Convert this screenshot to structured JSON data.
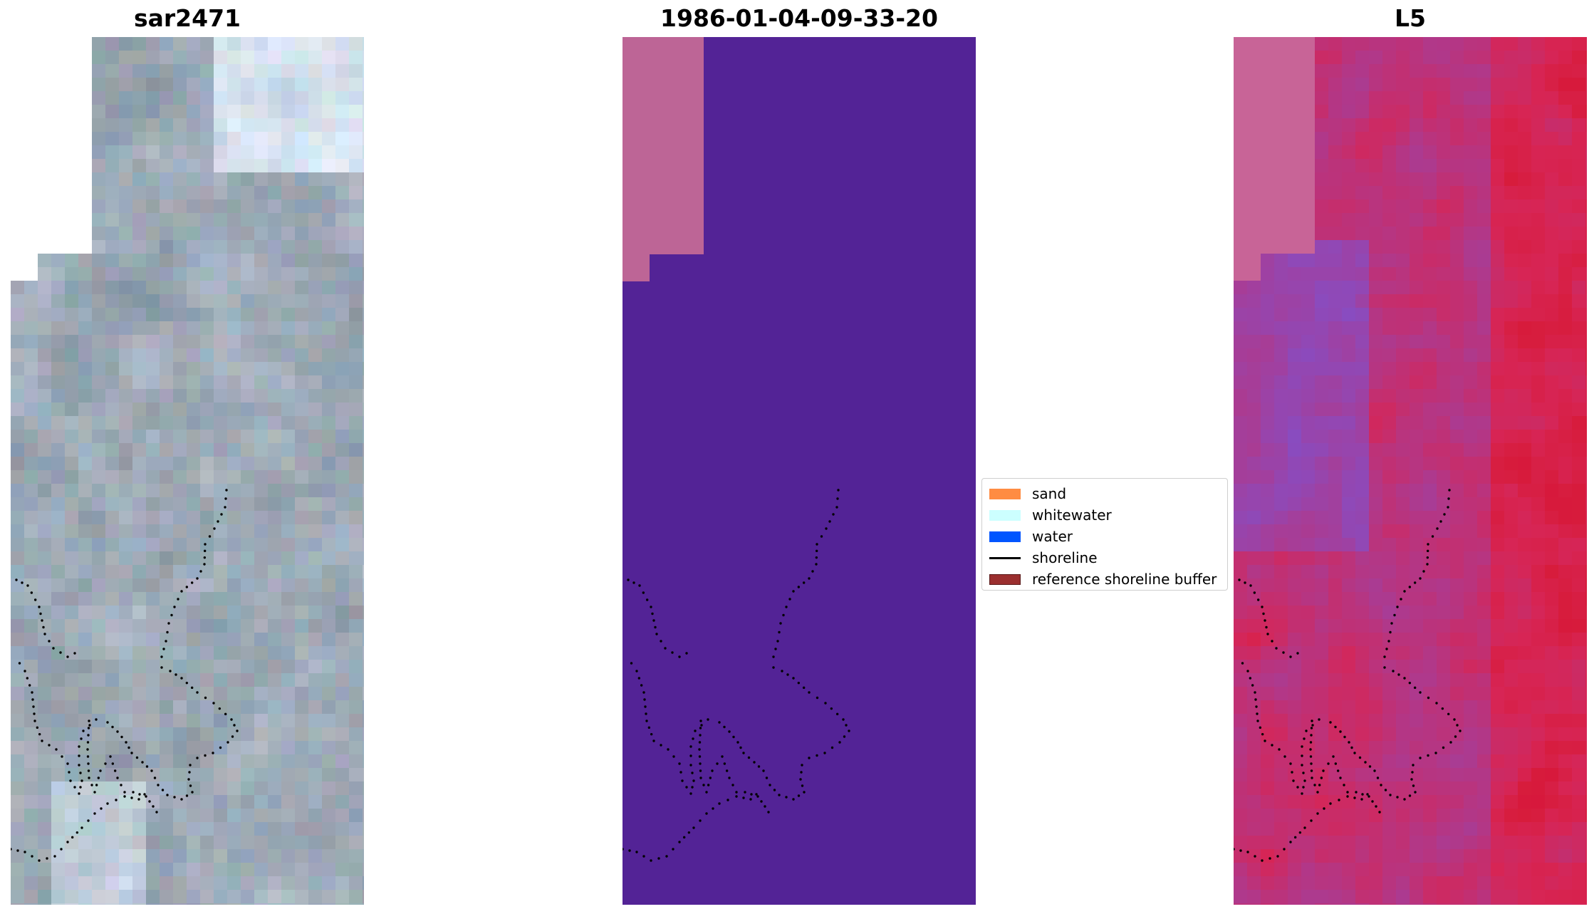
{
  "panels": [
    {
      "title": "sar2471",
      "kind": "rgb"
    },
    {
      "title": "1986-01-04-09-33-20",
      "kind": "classified"
    },
    {
      "title": "L5",
      "kind": "ndwi"
    }
  ],
  "classified_colors": {
    "nodata": "#bd6596",
    "background": "#532396"
  },
  "legend": {
    "items": [
      {
        "label": "sand",
        "color": "#ff8c42",
        "kind": "patch"
      },
      {
        "label": "whitewater",
        "color": "#ccffff",
        "kind": "patch"
      },
      {
        "label": "water",
        "color": "#0055ff",
        "kind": "patch"
      },
      {
        "label": "shoreline",
        "color": "#000000",
        "kind": "line"
      },
      {
        "label": "reference shoreline buffer",
        "color": "#9b2f2f",
        "kind": "patch"
      }
    ]
  },
  "icons": {
    "shoreline": "dotted-line-marker"
  }
}
